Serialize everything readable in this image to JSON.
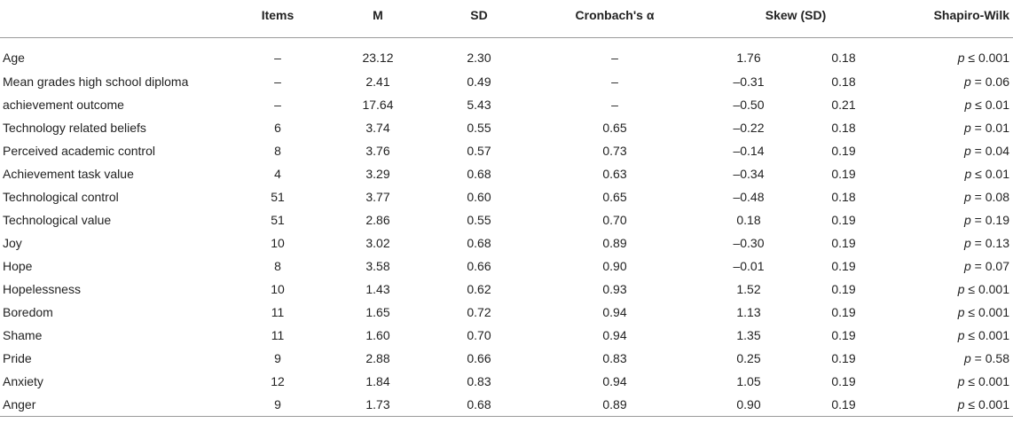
{
  "table": {
    "headers": {
      "label": "",
      "items": "Items",
      "m": "M",
      "sd": "SD",
      "alpha": "Cronbach's α",
      "skew": "Skew (SD)",
      "sw": "Shapiro-Wilk"
    },
    "rows": [
      {
        "label": "Age",
        "items": "–",
        "m": "23.12",
        "sd": "2.30",
        "alpha": "–",
        "skew": "1.76",
        "skew_sd": "0.18",
        "p": "p",
        "rel": "≤ 0.001"
      },
      {
        "label": "Mean grades high school diploma",
        "items": "–",
        "m": "2.41",
        "sd": "0.49",
        "alpha": "–",
        "skew": "–0.31",
        "skew_sd": "0.18",
        "p": "p",
        "rel": "= 0.06"
      },
      {
        "label": "achievement outcome",
        "items": "–",
        "m": "17.64",
        "sd": "5.43",
        "alpha": "–",
        "skew": "–0.50",
        "skew_sd": "0.21",
        "p": "p",
        "rel": "≤ 0.01"
      },
      {
        "label": "Technology related beliefs",
        "items": "6",
        "m": "3.74",
        "sd": "0.55",
        "alpha": "0.65",
        "skew": "–0.22",
        "skew_sd": "0.18",
        "p": "p",
        "rel": "= 0.01"
      },
      {
        "label": "Perceived academic control",
        "items": "8",
        "m": "3.76",
        "sd": "0.57",
        "alpha": "0.73",
        "skew": "–0.14",
        "skew_sd": "0.19",
        "p": "p",
        "rel": "= 0.04"
      },
      {
        "label": "Achievement task value",
        "items": "4",
        "m": "3.29",
        "sd": "0.68",
        "alpha": "0.63",
        "skew": "–0.34",
        "skew_sd": "0.19",
        "p": "p",
        "rel": "≤ 0.01"
      },
      {
        "label": "Technological control",
        "items": "51",
        "m": "3.77",
        "sd": "0.60",
        "alpha": "0.65",
        "skew": "–0.48",
        "skew_sd": "0.18",
        "p": "p",
        "rel": "= 0.08"
      },
      {
        "label": "Technological value",
        "items": "51",
        "m": "2.86",
        "sd": "0.55",
        "alpha": "0.70",
        "skew": "0.18",
        "skew_sd": "0.19",
        "p": "p",
        "rel": "= 0.19"
      },
      {
        "label": "Joy",
        "items": "10",
        "m": "3.02",
        "sd": "0.68",
        "alpha": "0.89",
        "skew": "–0.30",
        "skew_sd": "0.19",
        "p": "p",
        "rel": "= 0.13"
      },
      {
        "label": "Hope",
        "items": "8",
        "m": "3.58",
        "sd": "0.66",
        "alpha": "0.90",
        "skew": "–0.01",
        "skew_sd": "0.19",
        "p": "p",
        "rel": "= 0.07"
      },
      {
        "label": "Hopelessness",
        "items": "10",
        "m": "1.43",
        "sd": "0.62",
        "alpha": "0.93",
        "skew": "1.52",
        "skew_sd": "0.19",
        "p": "p",
        "rel": "≤ 0.001"
      },
      {
        "label": "Boredom",
        "items": "11",
        "m": "1.65",
        "sd": "0.72",
        "alpha": "0.94",
        "skew": "1.13",
        "skew_sd": "0.19",
        "p": "p",
        "rel": "≤ 0.001"
      },
      {
        "label": "Shame",
        "items": "11",
        "m": "1.60",
        "sd": "0.70",
        "alpha": "0.94",
        "skew": "1.35",
        "skew_sd": "0.19",
        "p": "p",
        "rel": "≤ 0.001"
      },
      {
        "label": "Pride",
        "items": "9",
        "m": "2.88",
        "sd": "0.66",
        "alpha": "0.83",
        "skew": "0.25",
        "skew_sd": "0.19",
        "p": "p",
        "rel": "= 0.58"
      },
      {
        "label": "Anxiety",
        "items": "12",
        "m": "1.84",
        "sd": "0.83",
        "alpha": "0.94",
        "skew": "1.05",
        "skew_sd": "0.19",
        "p": "p",
        "rel": "≤ 0.001"
      },
      {
        "label": "Anger",
        "items": "9",
        "m": "1.73",
        "sd": "0.68",
        "alpha": "0.89",
        "skew": "0.90",
        "skew_sd": "0.19",
        "p": "p",
        "rel": "≤ 0.001"
      }
    ]
  }
}
